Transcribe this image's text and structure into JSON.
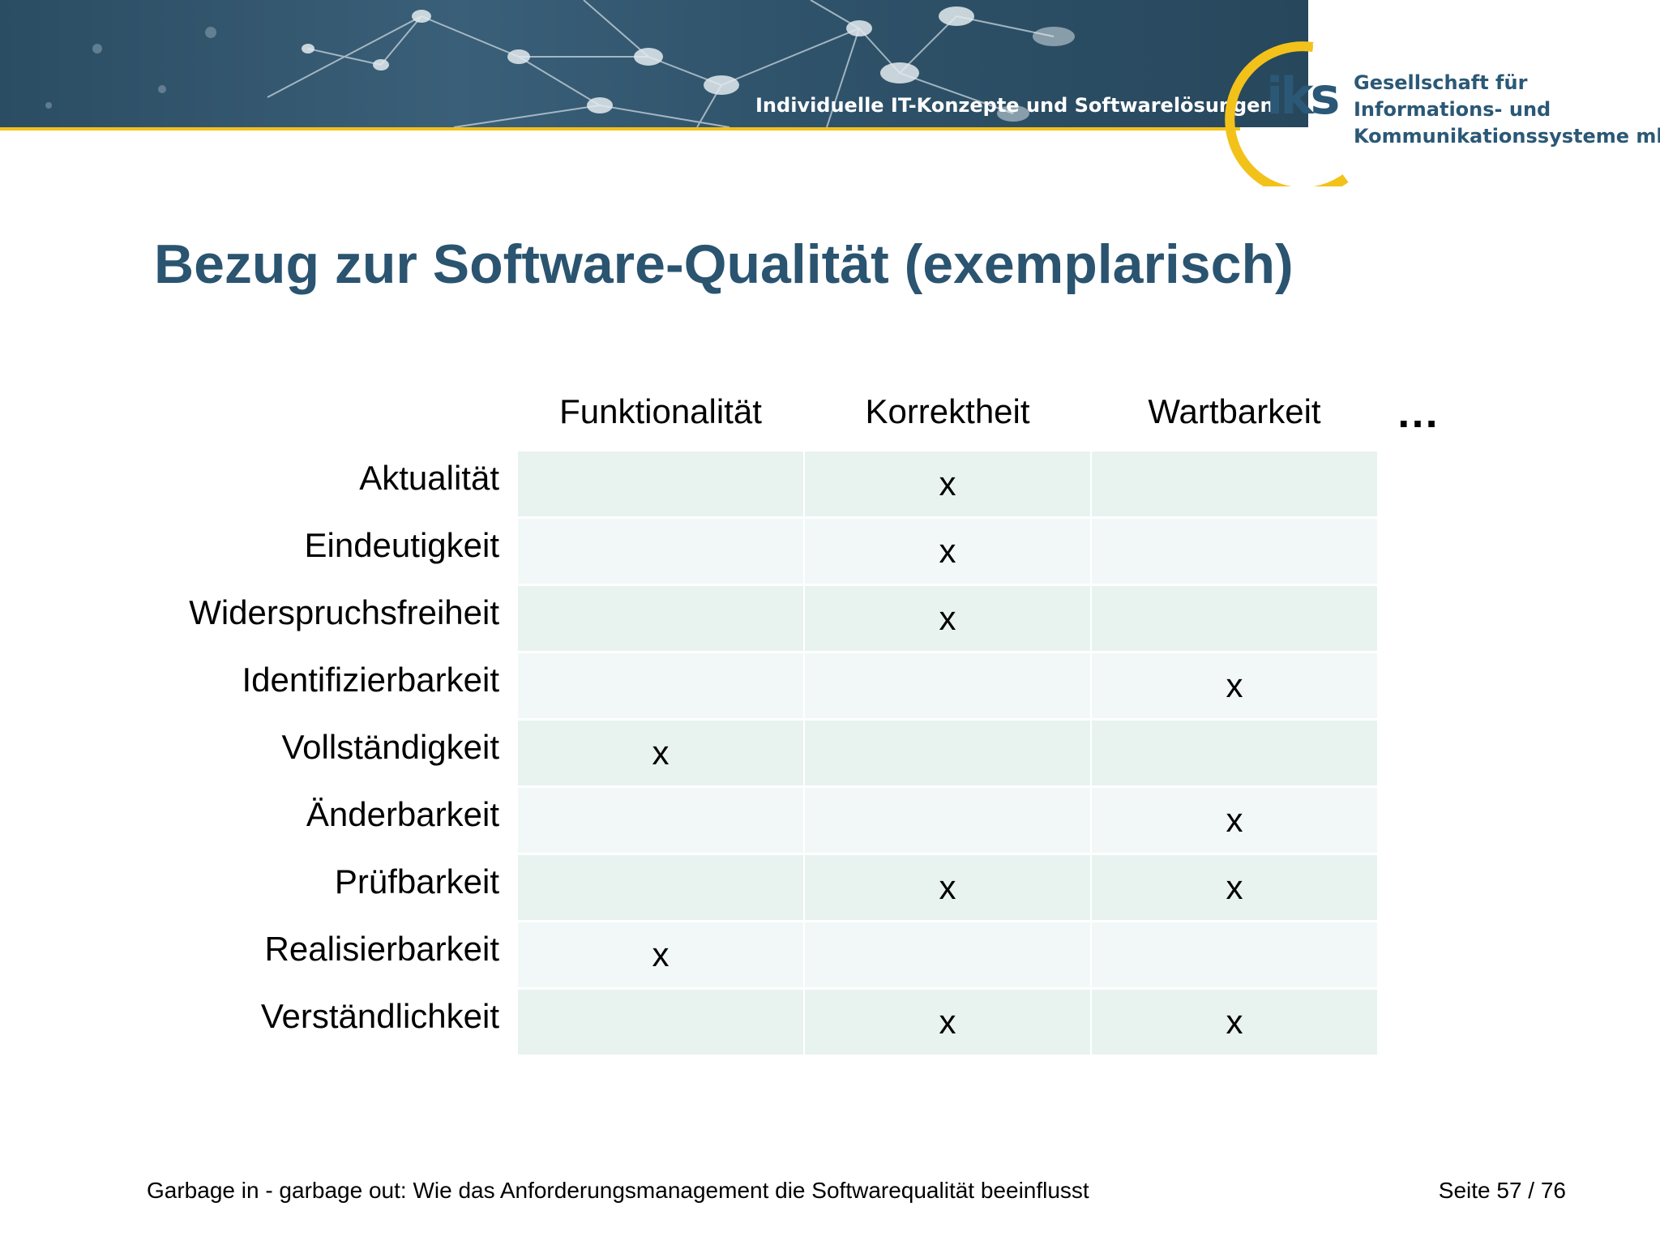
{
  "header": {
    "slogan": "Individuelle IT-Konzepte und Softwarelösungen",
    "logo_text": "iks",
    "company_lines": [
      "Gesellschaft für",
      "Informations- und",
      "Kommunikationssysteme mbH"
    ]
  },
  "slide": {
    "title": "Bezug zur Software-Qualität (exemplarisch)"
  },
  "matrix": {
    "columns": [
      "Funktionalität",
      "Korrektheit",
      "Wartbarkeit"
    ],
    "more_marker": "…",
    "rows": [
      {
        "label": "Aktualität",
        "cells": [
          "",
          "x",
          ""
        ]
      },
      {
        "label": "Eindeutigkeit",
        "cells": [
          "",
          "x",
          ""
        ]
      },
      {
        "label": "Widerspruchsfreiheit",
        "cells": [
          "",
          "x",
          ""
        ]
      },
      {
        "label": "Identifizierbarkeit",
        "cells": [
          "",
          "",
          "x"
        ]
      },
      {
        "label": "Vollständigkeit",
        "cells": [
          "x",
          "",
          ""
        ]
      },
      {
        "label": "Änderbarkeit",
        "cells": [
          "",
          "",
          "x"
        ]
      },
      {
        "label": "Prüfbarkeit",
        "cells": [
          "",
          "x",
          "x"
        ]
      },
      {
        "label": "Realisierbarkeit",
        "cells": [
          "x",
          "",
          ""
        ]
      },
      {
        "label": "Verständlichkeit",
        "cells": [
          "",
          "x",
          "x"
        ]
      }
    ]
  },
  "footer": {
    "subtitle": "Garbage in - garbage out: Wie das Anforderungsmanagement die Softwarequalität beeinflusst",
    "page": "Seite 57 / 76"
  },
  "colors": {
    "title": "#2a5470",
    "banner": "#2f536b",
    "accent": "#f2c21a",
    "cell_dark": "#e8f3f0",
    "cell_light": "#f2f8f7"
  }
}
